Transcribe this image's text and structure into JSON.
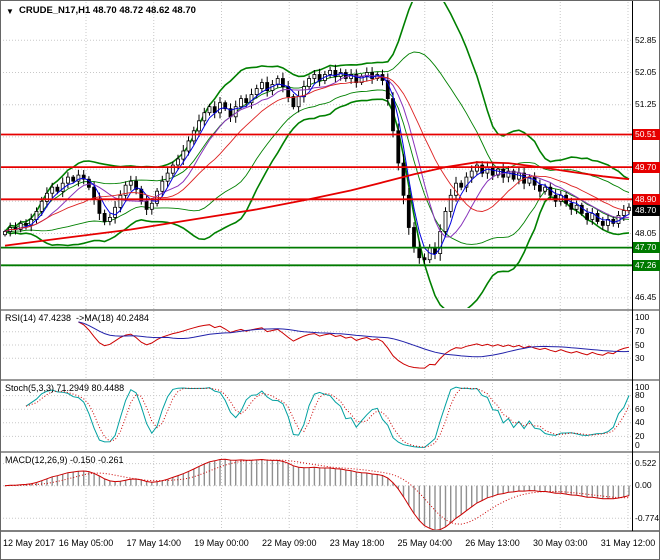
{
  "icons": {
    "symbol_menu": "▼"
  },
  "colors": {
    "background": "#ffffff",
    "grid": "#c8c8c8",
    "candle": "#000000",
    "separator": "#999999",
    "axis_border": "#000000",
    "badge_text": "#ffffff"
  },
  "chart_data": {
    "type": "candlestick",
    "symbol": "CRUDE_N17",
    "timeframe": "H1",
    "title": "CRUDE_N17,H1 48.70 48.72 48.62 48.70",
    "current_ohlc": {
      "open": "48.70",
      "high": "48.72",
      "low": "48.62",
      "close": "48.70"
    },
    "x_labels": [
      "12 May 2017",
      "16 May 05:00",
      "17 May 14:00",
      "19 May 00:00",
      "22 May 09:00",
      "23 May 18:00",
      "25 May 04:00",
      "26 May 13:00",
      "30 May 03:00",
      "31 May 12:00"
    ],
    "closes": [
      48.1,
      48.2,
      48.15,
      48.3,
      48.25,
      48.4,
      48.6,
      48.85,
      49.05,
      49.2,
      49.1,
      49.3,
      49.45,
      49.35,
      49.5,
      49.4,
      49.2,
      48.9,
      48.55,
      48.35,
      48.45,
      48.7,
      49.0,
      49.25,
      49.35,
      49.15,
      48.85,
      48.65,
      48.8,
      49.1,
      49.35,
      49.55,
      49.75,
      49.9,
      50.1,
      50.35,
      50.6,
      50.85,
      51.05,
      51.2,
      51.05,
      51.3,
      51.15,
      50.95,
      51.2,
      51.4,
      51.3,
      51.5,
      51.65,
      51.8,
      51.6,
      51.75,
      51.9,
      51.7,
      51.45,
      51.2,
      51.45,
      51.7,
      51.9,
      52.0,
      51.85,
      52.0,
      52.1,
      51.95,
      52.05,
      51.9,
      52.0,
      51.8,
      51.95,
      52.05,
      51.9,
      52.0,
      51.85,
      51.4,
      50.6,
      49.8,
      49.0,
      48.2,
      47.7,
      47.45,
      47.4,
      47.7,
      47.55,
      48.1,
      48.6,
      49.0,
      49.3,
      49.2,
      49.45,
      49.6,
      49.75,
      49.55,
      49.7,
      49.5,
      49.65,
      49.45,
      49.6,
      49.4,
      49.55,
      49.3,
      49.45,
      49.25,
      49.1,
      49.2,
      49.0,
      48.85,
      49.0,
      48.8,
      48.65,
      48.75,
      48.55,
      48.4,
      48.55,
      48.35,
      48.25,
      48.4,
      48.3,
      48.5,
      48.62,
      48.7
    ],
    "main_panel": {
      "ylim": [
        46.2,
        53.8
      ],
      "yticks": [
        "52.85",
        "52.05",
        "51.25",
        "48.05",
        "46.45"
      ],
      "tick_values": [
        52.85,
        52.05,
        51.25,
        48.05,
        46.45
      ],
      "grid_values": [
        52.85,
        52.05,
        51.25,
        50.45,
        49.65,
        48.85,
        48.05,
        47.25,
        46.45
      ],
      "levels": [
        {
          "value": 50.51,
          "label": "50.51",
          "color": "#e60000",
          "role": "resistance"
        },
        {
          "value": 49.7,
          "label": "49.70",
          "color": "#e60000",
          "role": "resistance"
        },
        {
          "value": 48.9,
          "label": "48.90",
          "color": "#e60000",
          "role": "resistance"
        },
        {
          "value": 47.7,
          "label": "47.70",
          "color": "#007a00",
          "role": "support"
        },
        {
          "value": 47.26,
          "label": "47.26",
          "color": "#007a00",
          "role": "support"
        }
      ],
      "price_badge": {
        "value": 48.7,
        "label": "48.70",
        "color": "#000000"
      },
      "overlays": {
        "bollinger_outer": {
          "period": 20,
          "deviation": 2.0,
          "color": "#008000"
        },
        "bollinger_inner": {
          "period": 20,
          "deviation": 1.0,
          "color": "#008000"
        },
        "ma_blue": {
          "period": 4,
          "color": "#0000e0"
        },
        "ma_violet": {
          "period": 9,
          "color": "#8833bb"
        },
        "ma_thin_red": {
          "period": 16,
          "color": "#dd2222"
        },
        "ma_long_red": {
          "color": "#e60000",
          "points": [
            [
              0,
              47.75
            ],
            [
              12,
              47.95
            ],
            [
              24,
              48.15
            ],
            [
              36,
              48.4
            ],
            [
              48,
              48.65
            ],
            [
              58,
              48.9
            ],
            [
              66,
              49.12
            ],
            [
              72,
              49.32
            ],
            [
              78,
              49.52
            ],
            [
              84,
              49.7
            ],
            [
              90,
              49.82
            ],
            [
              96,
              49.8
            ],
            [
              102,
              49.7
            ],
            [
              108,
              49.58
            ],
            [
              114,
              49.47
            ],
            [
              119,
              49.4
            ]
          ]
        }
      }
    },
    "rsi_panel": {
      "title": "RSI(14) 47.4238  ->MA(18) 40.2484",
      "period": 14,
      "ma_period": 18,
      "ylim": [
        0,
        100
      ],
      "yticks": [
        "100",
        "70",
        "50",
        "30"
      ],
      "tick_values": [
        100,
        70,
        50,
        30
      ],
      "line_color": "#cc0000",
      "ma_color": "#2222aa",
      "last_values": {
        "rsi": "47.4238",
        "ma": "40.2484"
      }
    },
    "stoch_panel": {
      "title": "Stoch(5,3,3) 71.2949 80.4488",
      "params": [
        5,
        3,
        3
      ],
      "ylim": [
        0,
        100
      ],
      "yticks": [
        "100",
        "80",
        "60",
        "40",
        "20",
        "0"
      ],
      "tick_values": [
        100,
        80,
        60,
        40,
        20,
        0
      ],
      "k_color": "#00a0a0",
      "d_color": "#cc0000",
      "last_values": {
        "k": "71.2949",
        "d": "80.4488"
      }
    },
    "macd_panel": {
      "title": "MACD(12,26,9) -0.150 -0.261",
      "params": [
        12,
        26,
        9
      ],
      "ylim": [
        -1.05,
        0.75
      ],
      "yticks": [
        "0.522",
        "0.00",
        "-0.774"
      ],
      "tick_values": [
        0.522,
        0.0,
        -0.774
      ],
      "hist_color": "#909090",
      "line_color": "#cc0000",
      "last_values": {
        "macd": "-0.150",
        "signal": "-0.261"
      }
    }
  }
}
